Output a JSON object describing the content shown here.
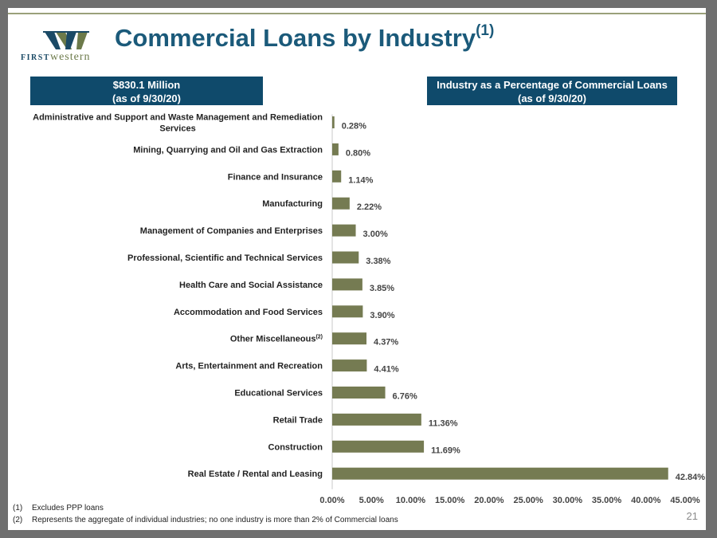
{
  "header": {
    "title": "Commercial Loans by Industry",
    "title_superscript": "(1)"
  },
  "logo": {
    "text_first": "FIRST",
    "text_second": "western"
  },
  "boxes": {
    "left_line1": "$830.1 Million",
    "left_line2": "(as of 9/30/20)",
    "right_line1": "Industry as a Percentage of Commercial Loans",
    "right_line2": "(as of 9/30/20)"
  },
  "colors": {
    "bar": "#757b52",
    "title": "#1b5a7a",
    "box": "#0f4a6b"
  },
  "chart_data": {
    "type": "bar",
    "orientation": "horizontal",
    "categories": [
      "Administrative and Support and Waste Management and Remediation Services",
      "Mining, Quarrying and Oil and Gas Extraction",
      "Finance and Insurance",
      "Manufacturing",
      "Management of Companies and Enterprises",
      "Professional, Scientific and Technical Services",
      "Health Care and Social Assistance",
      "Accommodation and Food Services",
      "Other Miscellaneous",
      "Arts, Entertainment and Recreation",
      "Educational Services",
      "Retail Trade",
      "Construction",
      "Real Estate / Rental and Leasing"
    ],
    "category_superscripts": [
      "",
      "",
      "",
      "",
      "",
      "",
      "",
      "",
      "(2)",
      "",
      "",
      "",
      "",
      ""
    ],
    "values": [
      0.28,
      0.8,
      1.14,
      2.22,
      3.0,
      3.38,
      3.85,
      3.9,
      4.37,
      4.41,
      6.76,
      11.36,
      11.69,
      42.84
    ],
    "value_labels": [
      "0.28%",
      "0.80%",
      "1.14%",
      "2.22%",
      "3.00%",
      "3.38%",
      "3.85%",
      "3.90%",
      "4.37%",
      "4.41%",
      "6.76%",
      "11.36%",
      "11.69%",
      "42.84%"
    ],
    "xlim": [
      0,
      45
    ],
    "x_ticks": [
      "0.00%",
      "5.00%",
      "10.00%",
      "15.00%",
      "20.00%",
      "25.00%",
      "30.00%",
      "35.00%",
      "40.00%",
      "45.00%"
    ],
    "grid": false
  },
  "footnotes": [
    {
      "num": "(1)",
      "text": "Excludes PPP loans"
    },
    {
      "num": "(2)",
      "text": "Represents the aggregate of  individual industries; no one industry is more than 2% of Commercial loans"
    }
  ],
  "page_number": "21"
}
